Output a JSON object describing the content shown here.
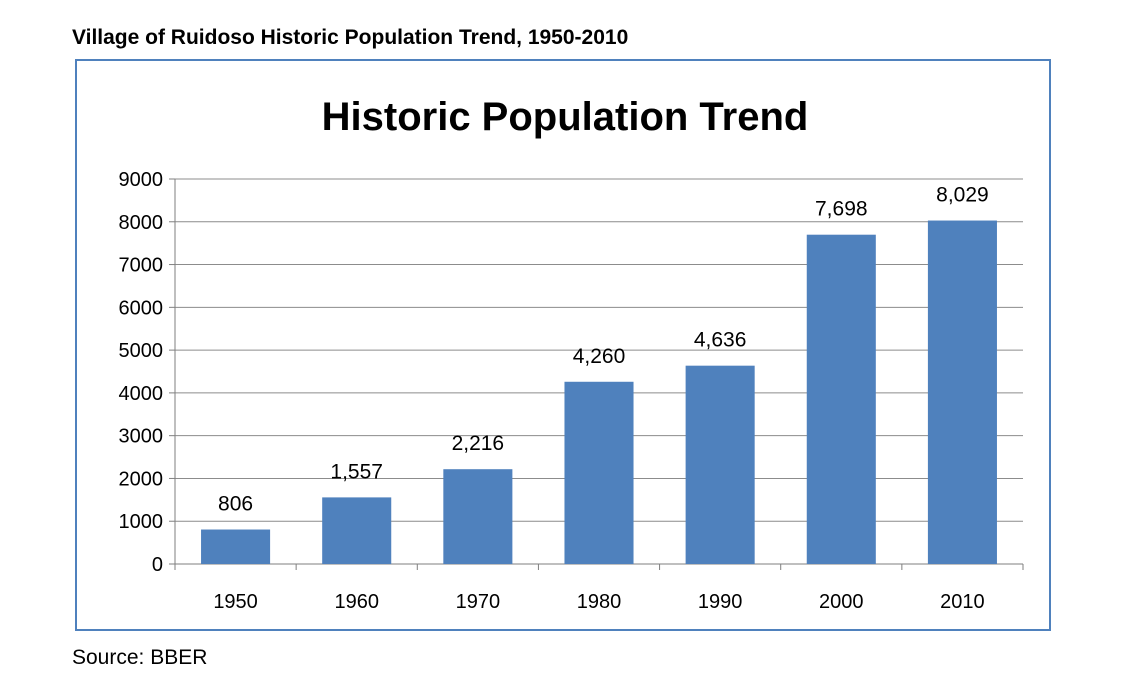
{
  "caption": "Village of Ruidoso Historic Population Trend, 1950-2010",
  "source": "Source: BBER",
  "chart_data": {
    "type": "bar",
    "title": "Historic Population Trend",
    "xlabel": "",
    "ylabel": "",
    "categories": [
      "1950",
      "1960",
      "1970",
      "1980",
      "1990",
      "2000",
      "2010"
    ],
    "values": [
      806,
      1557,
      2216,
      4260,
      4636,
      7698,
      8029
    ],
    "data_labels": [
      "806",
      "1,557",
      "2,216",
      "4,260",
      "4,636",
      "7,698",
      "8,029"
    ],
    "ylim": [
      0,
      9000
    ],
    "yticks": [
      0,
      1000,
      2000,
      3000,
      4000,
      5000,
      6000,
      7000,
      8000,
      9000
    ],
    "grid": true,
    "legend": "none",
    "bar_color": "#4f81bd",
    "frame_color": "#4f81bd"
  }
}
